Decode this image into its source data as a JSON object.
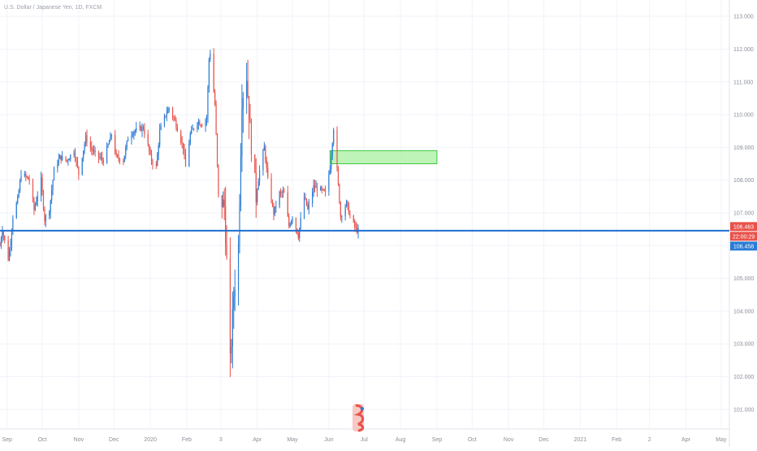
{
  "chart_data": {
    "type": "candlestick",
    "title": "U.S. Dollar / Japanese Yen, 1D, FXCM",
    "y_axis": {
      "position": "right",
      "ticks": [
        "113.000",
        "112.000",
        "111.000",
        "110.000",
        "109.000",
        "108.000",
        "107.000",
        "106.000",
        "105.000",
        "104.000",
        "103.000",
        "102.000",
        "101.000"
      ],
      "range": [
        100.4,
        113.5
      ]
    },
    "x_axis": {
      "ticks": [
        "Sep",
        "Oct",
        "Nov",
        "Dec",
        "2020",
        "Feb",
        "3",
        "Apr",
        "May",
        "Jun",
        "Jul",
        "Aug",
        "Sep",
        "Oct",
        "Nov",
        "Dec",
        "2021",
        "Feb",
        "2",
        "Apr",
        "May"
      ],
      "range": [
        "2019-08-26",
        "2021-05-08"
      ]
    },
    "colors": {
      "up": "#2a7cd5",
      "down": "#e8524a",
      "line": "#1e6fd0",
      "zone_fill": "#a8f0a0",
      "zone_border": "#3cc83c"
    },
    "price_labels": [
      {
        "text": "106.463",
        "color": "#e8524a"
      },
      {
        "text": "22:00:29",
        "color": "#e8524a"
      },
      {
        "text": "106.458",
        "color": "#2a7cd5"
      }
    ],
    "horizontal_line": {
      "price": 106.458
    },
    "supply_zone": {
      "price_low": 108.5,
      "price_high": 108.9,
      "start": "2020-06-02",
      "end": "2020-09-01"
    },
    "path": [
      [
        "2019-08-26",
        106.0
      ],
      [
        "2019-08-28",
        106.5
      ],
      [
        "2019-09-02",
        105.6
      ],
      [
        "2019-09-04",
        106.1
      ],
      [
        "2019-09-06",
        106.9
      ],
      [
        "2019-09-10",
        107.4
      ],
      [
        "2019-09-13",
        108.2
      ],
      [
        "2019-09-17",
        108.1
      ],
      [
        "2019-09-20",
        108.0
      ],
      [
        "2019-09-24",
        107.1
      ],
      [
        "2019-09-30",
        108.0
      ],
      [
        "2019-10-03",
        106.8
      ],
      [
        "2019-10-07",
        107.1
      ],
      [
        "2019-10-11",
        108.3
      ],
      [
        "2019-10-16",
        108.7
      ],
      [
        "2019-10-22",
        108.6
      ],
      [
        "2019-10-28",
        108.9
      ],
      [
        "2019-11-01",
        108.2
      ],
      [
        "2019-11-07",
        109.3
      ],
      [
        "2019-11-11",
        109.0
      ],
      [
        "2019-11-15",
        108.8
      ],
      [
        "2019-11-22",
        108.6
      ],
      [
        "2019-11-29",
        109.4
      ],
      [
        "2019-12-03",
        108.7
      ],
      [
        "2019-12-09",
        108.6
      ],
      [
        "2019-12-13",
        109.3
      ],
      [
        "2019-12-18",
        109.5
      ],
      [
        "2019-12-26",
        109.6
      ],
      [
        "2020-01-02",
        108.6
      ],
      [
        "2020-01-06",
        108.4
      ],
      [
        "2020-01-09",
        109.5
      ],
      [
        "2020-01-14",
        110.0
      ],
      [
        "2020-01-17",
        110.2
      ],
      [
        "2020-01-22",
        109.8
      ],
      [
        "2020-01-29",
        109.0
      ],
      [
        "2020-01-31",
        108.4
      ],
      [
        "2020-02-04",
        109.4
      ],
      [
        "2020-02-10",
        109.8
      ],
      [
        "2020-02-14",
        109.7
      ],
      [
        "2020-02-18",
        109.9
      ],
      [
        "2020-02-20",
        111.7
      ],
      [
        "2020-02-21",
        111.9
      ],
      [
        "2020-02-25",
        110.3
      ],
      [
        "2020-02-28",
        107.5
      ],
      [
        "2020-03-04",
        107.2
      ],
      [
        "2020-03-06",
        105.5
      ],
      [
        "2020-03-09",
        102.4
      ],
      [
        "2020-03-12",
        104.5
      ],
      [
        "2020-03-16",
        106.0
      ],
      [
        "2020-03-19",
        110.5
      ],
      [
        "2020-03-23",
        111.2
      ],
      [
        "2020-03-26",
        109.5
      ],
      [
        "2020-03-31",
        107.5
      ],
      [
        "2020-04-03",
        108.3
      ],
      [
        "2020-04-07",
        109.0
      ],
      [
        "2020-04-10",
        108.0
      ],
      [
        "2020-04-15",
        107.0
      ],
      [
        "2020-04-20",
        107.6
      ],
      [
        "2020-04-24",
        107.6
      ],
      [
        "2020-04-28",
        106.6
      ],
      [
        "2020-05-01",
        106.9
      ],
      [
        "2020-05-06",
        106.3
      ],
      [
        "2020-05-11",
        107.5
      ],
      [
        "2020-05-14",
        107.1
      ],
      [
        "2020-05-19",
        107.8
      ],
      [
        "2020-05-25",
        107.7
      ],
      [
        "2020-05-29",
        107.6
      ],
      [
        "2020-06-02",
        108.4
      ],
      [
        "2020-06-05",
        109.6
      ],
      [
        "2020-06-08",
        108.3
      ],
      [
        "2020-06-11",
        106.9
      ],
      [
        "2020-06-16",
        107.3
      ],
      [
        "2020-06-19",
        106.9
      ],
      [
        "2020-06-24",
        106.5
      ],
      [
        "2020-06-26",
        106.45
      ]
    ]
  },
  "watermark_icon": "tradingview-logo-icon"
}
